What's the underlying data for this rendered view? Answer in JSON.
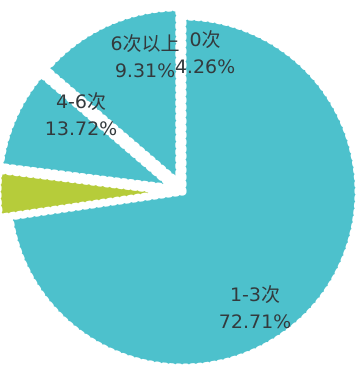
{
  "chart_data": {
    "type": "pie",
    "title": "",
    "series": [
      {
        "name": "",
        "slices": [
          {
            "label": "1-3次",
            "value": 72.71,
            "display": "72.71%",
            "color": "#4dc1cc"
          },
          {
            "label": "0次",
            "value": 4.26,
            "display": "4.26%",
            "color": "#b6cc3a"
          },
          {
            "label": "6次以上",
            "value": 9.31,
            "display": "9.31%",
            "color": "#4dc1cc"
          },
          {
            "label": "4-6次",
            "value": 13.72,
            "display": "13.72%",
            "color": "#4dc1cc"
          }
        ]
      }
    ],
    "start_angle_deg": 90,
    "direction": "clockwise",
    "legend": "none",
    "labels": "on-slice"
  }
}
